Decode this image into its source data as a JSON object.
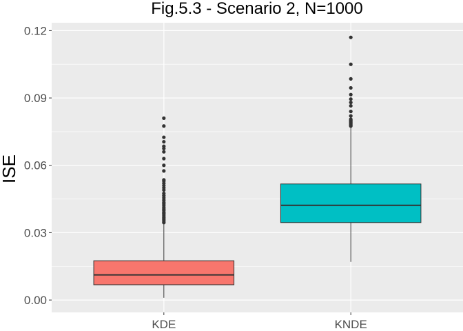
{
  "chart_data": {
    "type": "boxplot",
    "title": "Fig.5.3 - Scenario 2, N=1000",
    "xlabel": "",
    "ylabel": "ISE",
    "ylim": [
      -0.0055,
      0.1235
    ],
    "yticks": [
      0.0,
      0.03,
      0.06,
      0.09,
      0.12
    ],
    "ytick_labels": [
      "0.00",
      "0.03",
      "0.06",
      "0.09",
      "0.12"
    ],
    "grid": true,
    "legend": "none",
    "categories": [
      "KDE",
      "KNDE"
    ],
    "boxes": [
      {
        "category": "KDE",
        "color": "#F8766D",
        "whisker_low": 0.001,
        "q1": 0.0068,
        "median": 0.0112,
        "q3": 0.0175,
        "whisker_high": 0.0338,
        "outliers": [
          0.0345,
          0.0352,
          0.0358,
          0.0365,
          0.037,
          0.0378,
          0.0385,
          0.039,
          0.0398,
          0.0405,
          0.0412,
          0.042,
          0.0428,
          0.0435,
          0.0445,
          0.0455,
          0.0465,
          0.0475,
          0.049,
          0.05,
          0.051,
          0.052,
          0.053,
          0.0535,
          0.0575,
          0.06,
          0.063,
          0.066,
          0.0675,
          0.0685,
          0.0705,
          0.0725,
          0.0775,
          0.081
        ]
      },
      {
        "category": "KNDE",
        "color": "#00BFC4",
        "whisker_low": 0.017,
        "q1": 0.0345,
        "median": 0.0422,
        "q3": 0.0517,
        "whisker_high": 0.077,
        "outliers": [
          0.0775,
          0.078,
          0.0785,
          0.079,
          0.0795,
          0.08,
          0.0805,
          0.082,
          0.084,
          0.0865,
          0.088,
          0.0895,
          0.0915,
          0.0945,
          0.0985,
          0.105,
          0.117
        ]
      }
    ],
    "colors": {
      "panel_bg": "#EBEBEB",
      "grid": "#FFFFFF",
      "box_stroke": "#333333",
      "outlier": "#333333"
    }
  }
}
